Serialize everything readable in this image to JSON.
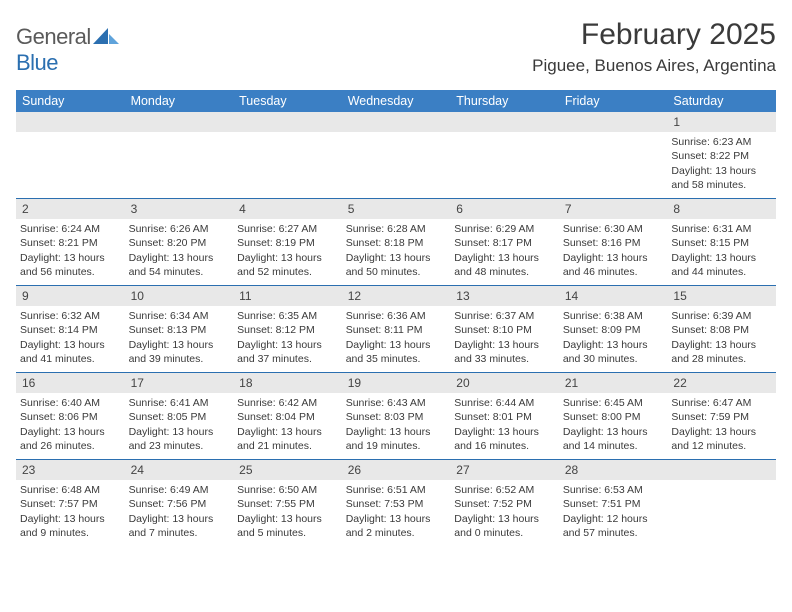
{
  "brand": {
    "name_a": "General",
    "name_b": "Blue"
  },
  "title": "February 2025",
  "location": "Piguee, Buenos Aires, Argentina",
  "colors": {
    "header_bg": "#3b7fc4",
    "accent": "#2b6fb0",
    "daynum_bg": "#e8e8e8",
    "text": "#3a3a3a"
  },
  "weekdays": [
    "Sunday",
    "Monday",
    "Tuesday",
    "Wednesday",
    "Thursday",
    "Friday",
    "Saturday"
  ],
  "first_weekday_index": 6,
  "days": [
    {
      "n": 1,
      "sunrise": "6:23 AM",
      "sunset": "8:22 PM",
      "daylight": "13 hours and 58 minutes."
    },
    {
      "n": 2,
      "sunrise": "6:24 AM",
      "sunset": "8:21 PM",
      "daylight": "13 hours and 56 minutes."
    },
    {
      "n": 3,
      "sunrise": "6:26 AM",
      "sunset": "8:20 PM",
      "daylight": "13 hours and 54 minutes."
    },
    {
      "n": 4,
      "sunrise": "6:27 AM",
      "sunset": "8:19 PM",
      "daylight": "13 hours and 52 minutes."
    },
    {
      "n": 5,
      "sunrise": "6:28 AM",
      "sunset": "8:18 PM",
      "daylight": "13 hours and 50 minutes."
    },
    {
      "n": 6,
      "sunrise": "6:29 AM",
      "sunset": "8:17 PM",
      "daylight": "13 hours and 48 minutes."
    },
    {
      "n": 7,
      "sunrise": "6:30 AM",
      "sunset": "8:16 PM",
      "daylight": "13 hours and 46 minutes."
    },
    {
      "n": 8,
      "sunrise": "6:31 AM",
      "sunset": "8:15 PM",
      "daylight": "13 hours and 44 minutes."
    },
    {
      "n": 9,
      "sunrise": "6:32 AM",
      "sunset": "8:14 PM",
      "daylight": "13 hours and 41 minutes."
    },
    {
      "n": 10,
      "sunrise": "6:34 AM",
      "sunset": "8:13 PM",
      "daylight": "13 hours and 39 minutes."
    },
    {
      "n": 11,
      "sunrise": "6:35 AM",
      "sunset": "8:12 PM",
      "daylight": "13 hours and 37 minutes."
    },
    {
      "n": 12,
      "sunrise": "6:36 AM",
      "sunset": "8:11 PM",
      "daylight": "13 hours and 35 minutes."
    },
    {
      "n": 13,
      "sunrise": "6:37 AM",
      "sunset": "8:10 PM",
      "daylight": "13 hours and 33 minutes."
    },
    {
      "n": 14,
      "sunrise": "6:38 AM",
      "sunset": "8:09 PM",
      "daylight": "13 hours and 30 minutes."
    },
    {
      "n": 15,
      "sunrise": "6:39 AM",
      "sunset": "8:08 PM",
      "daylight": "13 hours and 28 minutes."
    },
    {
      "n": 16,
      "sunrise": "6:40 AM",
      "sunset": "8:06 PM",
      "daylight": "13 hours and 26 minutes."
    },
    {
      "n": 17,
      "sunrise": "6:41 AM",
      "sunset": "8:05 PM",
      "daylight": "13 hours and 23 minutes."
    },
    {
      "n": 18,
      "sunrise": "6:42 AM",
      "sunset": "8:04 PM",
      "daylight": "13 hours and 21 minutes."
    },
    {
      "n": 19,
      "sunrise": "6:43 AM",
      "sunset": "8:03 PM",
      "daylight": "13 hours and 19 minutes."
    },
    {
      "n": 20,
      "sunrise": "6:44 AM",
      "sunset": "8:01 PM",
      "daylight": "13 hours and 16 minutes."
    },
    {
      "n": 21,
      "sunrise": "6:45 AM",
      "sunset": "8:00 PM",
      "daylight": "13 hours and 14 minutes."
    },
    {
      "n": 22,
      "sunrise": "6:47 AM",
      "sunset": "7:59 PM",
      "daylight": "13 hours and 12 minutes."
    },
    {
      "n": 23,
      "sunrise": "6:48 AM",
      "sunset": "7:57 PM",
      "daylight": "13 hours and 9 minutes."
    },
    {
      "n": 24,
      "sunrise": "6:49 AM",
      "sunset": "7:56 PM",
      "daylight": "13 hours and 7 minutes."
    },
    {
      "n": 25,
      "sunrise": "6:50 AM",
      "sunset": "7:55 PM",
      "daylight": "13 hours and 5 minutes."
    },
    {
      "n": 26,
      "sunrise": "6:51 AM",
      "sunset": "7:53 PM",
      "daylight": "13 hours and 2 minutes."
    },
    {
      "n": 27,
      "sunrise": "6:52 AM",
      "sunset": "7:52 PM",
      "daylight": "13 hours and 0 minutes."
    },
    {
      "n": 28,
      "sunrise": "6:53 AM",
      "sunset": "7:51 PM",
      "daylight": "12 hours and 57 minutes."
    }
  ],
  "labels": {
    "sunrise": "Sunrise:",
    "sunset": "Sunset:",
    "daylight": "Daylight:"
  }
}
